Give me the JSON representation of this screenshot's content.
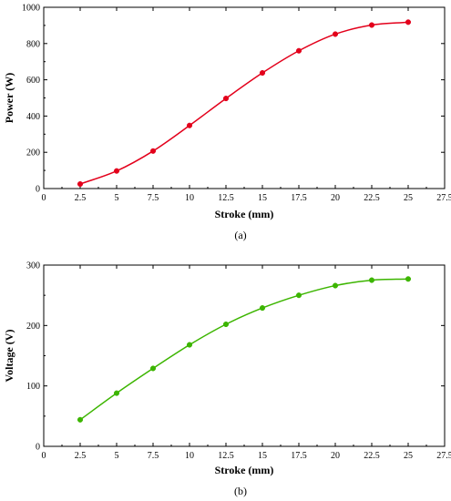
{
  "chart_data": [
    {
      "type": "line",
      "caption": "(a)",
      "xlabel": "Stroke (mm)",
      "ylabel": "Power (W)",
      "xlim": [
        0,
        27.5
      ],
      "ylim": [
        0,
        1000
      ],
      "xticks": [
        0,
        2.5,
        5,
        7.5,
        10,
        12.5,
        15,
        17.5,
        20,
        22.5,
        25,
        27.5
      ],
      "xtick_labels": [
        "0",
        "2.5",
        "5",
        "7.5",
        "10",
        "12.5",
        "15",
        "17.5",
        "20",
        "22.5",
        "25",
        "27.5"
      ],
      "yticks": [
        0,
        200,
        400,
        600,
        800,
        1000
      ],
      "ytick_labels": [
        "0",
        "200",
        "400",
        "600",
        "800",
        "1000"
      ],
      "grid": false,
      "series": [
        {
          "color": "#e3001b",
          "marker": "circle",
          "x": [
            2.5,
            5,
            7.5,
            10,
            12.5,
            15,
            17.5,
            20,
            22.5,
            25
          ],
          "y": [
            25,
            97,
            207,
            348,
            497,
            638,
            760,
            852,
            902,
            918
          ]
        }
      ]
    },
    {
      "type": "line",
      "caption": "(b)",
      "xlabel": "Stroke (mm)",
      "ylabel": "Voltage (V)",
      "xlim": [
        0,
        27.5
      ],
      "ylim": [
        0,
        300
      ],
      "xticks": [
        0,
        2.5,
        5,
        7.5,
        10,
        12.5,
        15,
        17.5,
        20,
        22.5,
        25,
        27.5
      ],
      "xtick_labels": [
        "0",
        "2.5",
        "5",
        "7.5",
        "10",
        "12.5",
        "15",
        "17.5",
        "20",
        "22.5",
        "25",
        "27.5"
      ],
      "yticks": [
        0,
        100,
        200,
        300
      ],
      "ytick_labels": [
        "0",
        "100",
        "200",
        "300"
      ],
      "grid": false,
      "series": [
        {
          "color": "#3cb500",
          "marker": "circle",
          "x": [
            2.5,
            5,
            7.5,
            10,
            12.5,
            15,
            17.5,
            20,
            22.5,
            25
          ],
          "y": [
            44,
            88,
            129,
            168,
            202,
            229,
            250,
            266,
            275,
            277
          ]
        }
      ]
    }
  ]
}
